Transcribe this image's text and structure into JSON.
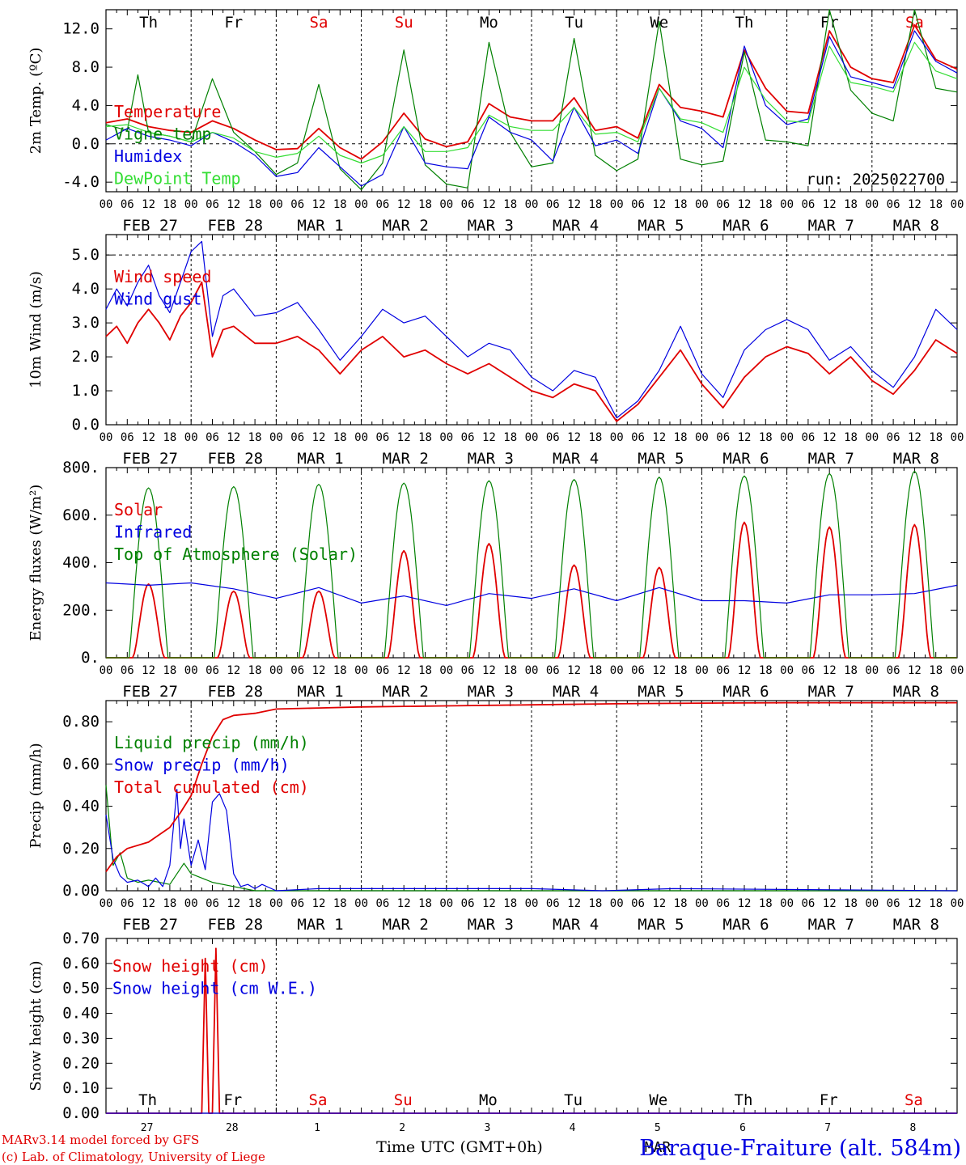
{
  "colors": {
    "red": "#e00000",
    "green": "#008000",
    "blue": "#0000e0",
    "lightgreen": "#33dd33",
    "axis": "#000000"
  },
  "days": [
    {
      "dow": "Th",
      "date": "FEB 27",
      "num": "27",
      "weekend": false
    },
    {
      "dow": "Fr",
      "date": "FEB 28",
      "num": "28",
      "weekend": false
    },
    {
      "dow": "Sa",
      "date": "MAR  1",
      "num": "1",
      "weekend": true
    },
    {
      "dow": "Su",
      "date": "MAR  2",
      "num": "2",
      "weekend": true
    },
    {
      "dow": "Mo",
      "date": "MAR  3",
      "num": "3",
      "weekend": false
    },
    {
      "dow": "Tu",
      "date": "MAR  4",
      "num": "4",
      "weekend": false
    },
    {
      "dow": "We",
      "date": "MAR  5",
      "num": "5",
      "weekend": false
    },
    {
      "dow": "Th",
      "date": "MAR  6",
      "num": "6",
      "weekend": false
    },
    {
      "dow": "Fr",
      "date": "MAR  7",
      "num": "7",
      "weekend": false
    },
    {
      "dow": "Sa",
      "date": "MAR  8",
      "num": "8",
      "weekend": true
    }
  ],
  "hour_ticks": [
    "00",
    "06",
    "12",
    "18"
  ],
  "run_label": "run: 2025022700",
  "footer": {
    "model": "MARv3.14 model forced by GFS",
    "copyright": "(c) Lab. of Climatology, University of Liege",
    "xlabel": "Time UTC (GMT+0h)",
    "month": "MAR",
    "station": "Baraque-Fraiture (alt. 584m)"
  },
  "chart_data": [
    {
      "id": "temperature",
      "type": "line",
      "ylabel": "2m Temp. (ºC)",
      "ylim": [
        -5.0,
        14.0
      ],
      "yticks": [
        -4.0,
        0.0,
        4.0,
        8.0,
        12.0
      ],
      "ytick_labels": [
        "-4.0",
        "0.0",
        "4.0",
        "8.0",
        "12.0"
      ],
      "reference_line": 0.0,
      "x_unit": "hours since FEB 27 00 UTC",
      "series": [
        {
          "name": "Temperature",
          "color": "red",
          "x": [
            0,
            6,
            12,
            18,
            24,
            30,
            36,
            42,
            48,
            54,
            60,
            66,
            72,
            78,
            84,
            90,
            96,
            102,
            108,
            114,
            120,
            126,
            132,
            138,
            144,
            150,
            156,
            162,
            168,
            174,
            180,
            186,
            192,
            198,
            204,
            210,
            216,
            222,
            228,
            234,
            240
          ],
          "values": [
            2.2,
            2.6,
            1.8,
            1.4,
            1.2,
            2.4,
            1.6,
            0.4,
            -0.6,
            -0.5,
            1.6,
            -0.4,
            -1.6,
            0.2,
            3.2,
            0.5,
            -0.3,
            0.2,
            4.2,
            2.8,
            2.4,
            2.4,
            4.8,
            1.4,
            1.8,
            0.6,
            6.2,
            3.8,
            3.4,
            2.8,
            9.8,
            5.8,
            3.4,
            3.2,
            11.8,
            8.0,
            6.8,
            6.4,
            12.4,
            8.8,
            7.8
          ]
        },
        {
          "name": "Vigne temp",
          "color": "green",
          "x": [
            0,
            6,
            9,
            12,
            18,
            24,
            30,
            36,
            42,
            48,
            54,
            60,
            66,
            72,
            78,
            84,
            90,
            96,
            102,
            108,
            114,
            120,
            126,
            132,
            138,
            144,
            150,
            156,
            162,
            168,
            174,
            180,
            186,
            192,
            198,
            204,
            210,
            216,
            222,
            228,
            234,
            240
          ],
          "values": [
            2.0,
            1.4,
            7.2,
            1.2,
            0.8,
            0.2,
            6.8,
            1.2,
            -0.8,
            -3.2,
            -2.0,
            6.2,
            -2.6,
            -4.8,
            -2.0,
            9.8,
            -2.2,
            -4.2,
            -4.6,
            10.6,
            1.2,
            -2.4,
            -2.0,
            11.0,
            -1.2,
            -2.8,
            -1.6,
            12.8,
            -1.6,
            -2.2,
            -1.8,
            9.6,
            0.4,
            0.2,
            -0.2,
            14.0,
            5.6,
            3.2,
            2.4,
            14.0,
            5.8,
            5.4
          ]
        },
        {
          "name": "Humidex",
          "color": "blue",
          "x": [
            0,
            6,
            12,
            18,
            24,
            30,
            36,
            42,
            48,
            54,
            60,
            66,
            72,
            78,
            84,
            90,
            96,
            102,
            108,
            114,
            120,
            126,
            132,
            138,
            144,
            150,
            156,
            162,
            168,
            174,
            180,
            186,
            192,
            198,
            204,
            210,
            216,
            222,
            228,
            234,
            240
          ],
          "values": [
            0.4,
            1.6,
            0.8,
            0.4,
            -0.2,
            1.2,
            0.2,
            -1.2,
            -3.4,
            -3.0,
            -0.4,
            -2.4,
            -4.4,
            -3.2,
            1.8,
            -2.0,
            -2.4,
            -2.6,
            2.8,
            1.2,
            0.4,
            -1.8,
            3.8,
            -0.2,
            0.4,
            -1.0,
            5.8,
            2.4,
            1.6,
            -0.4,
            10.2,
            4.0,
            2.0,
            2.6,
            11.2,
            7.0,
            6.4,
            5.8,
            11.8,
            8.6,
            7.4
          ]
        },
        {
          "name": "DewPoint Temp",
          "color": "lightgreen",
          "x": [
            0,
            6,
            12,
            18,
            24,
            30,
            36,
            42,
            48,
            54,
            60,
            66,
            72,
            78,
            84,
            90,
            96,
            102,
            108,
            114,
            120,
            126,
            132,
            138,
            144,
            150,
            156,
            162,
            168,
            174,
            180,
            186,
            192,
            198,
            204,
            210,
            216,
            222,
            228,
            234,
            240
          ],
          "values": [
            1.8,
            2.0,
            1.2,
            0.8,
            0.2,
            1.2,
            0.6,
            -0.8,
            -1.4,
            -1.0,
            0.8,
            -1.2,
            -2.0,
            -1.2,
            1.8,
            -0.8,
            -0.8,
            -0.4,
            3.0,
            1.8,
            1.4,
            1.4,
            3.8,
            1.0,
            1.2,
            0.2,
            5.8,
            2.6,
            2.2,
            1.2,
            8.0,
            4.6,
            2.4,
            2.2,
            10.2,
            6.4,
            6.0,
            5.4,
            10.6,
            7.6,
            6.8
          ]
        }
      ]
    },
    {
      "id": "wind",
      "type": "line",
      "ylabel": "10m Wind (m/s)",
      "ylim": [
        0.0,
        5.6
      ],
      "yticks": [
        0.0,
        1.0,
        2.0,
        3.0,
        4.0,
        5.0
      ],
      "ytick_labels": [
        "0.0",
        "1.0",
        "2.0",
        "3.0",
        "4.0",
        "5.0"
      ],
      "reference_line": 5.0,
      "series": [
        {
          "name": "Wind speed",
          "color": "red",
          "x": [
            0,
            3,
            6,
            9,
            12,
            15,
            18,
            21,
            24,
            27,
            30,
            33,
            36,
            42,
            48,
            54,
            60,
            66,
            72,
            78,
            84,
            90,
            96,
            102,
            108,
            114,
            120,
            126,
            132,
            138,
            144,
            150,
            156,
            162,
            168,
            174,
            180,
            186,
            192,
            198,
            204,
            210,
            216,
            222,
            228,
            234,
            240
          ],
          "values": [
            2.6,
            2.9,
            2.4,
            3.0,
            3.4,
            3.0,
            2.5,
            3.2,
            3.6,
            4.2,
            2.0,
            2.8,
            2.9,
            2.4,
            2.4,
            2.6,
            2.2,
            1.5,
            2.2,
            2.6,
            2.0,
            2.2,
            1.8,
            1.5,
            1.8,
            1.4,
            1.0,
            0.8,
            1.2,
            1.0,
            0.1,
            0.6,
            1.4,
            2.2,
            1.2,
            0.5,
            1.4,
            2.0,
            2.3,
            2.1,
            1.5,
            2.0,
            1.3,
            0.9,
            1.6,
            2.5,
            2.1
          ]
        },
        {
          "name": "Wind gust",
          "color": "blue",
          "x": [
            0,
            3,
            6,
            9,
            12,
            15,
            18,
            21,
            24,
            27,
            30,
            33,
            36,
            42,
            48,
            54,
            60,
            66,
            72,
            78,
            84,
            90,
            96,
            102,
            108,
            114,
            120,
            126,
            132,
            138,
            144,
            150,
            156,
            162,
            168,
            174,
            180,
            186,
            192,
            198,
            204,
            210,
            216,
            222,
            228,
            234,
            240
          ],
          "values": [
            3.4,
            4.0,
            3.5,
            4.2,
            4.7,
            3.8,
            3.3,
            4.2,
            5.1,
            5.4,
            2.6,
            3.8,
            4.0,
            3.2,
            3.3,
            3.6,
            2.8,
            1.9,
            2.6,
            3.4,
            3.0,
            3.2,
            2.6,
            2.0,
            2.4,
            2.2,
            1.4,
            1.0,
            1.6,
            1.4,
            0.2,
            0.7,
            1.6,
            2.9,
            1.5,
            0.8,
            2.2,
            2.8,
            3.1,
            2.8,
            1.9,
            2.3,
            1.6,
            1.1,
            2.0,
            3.4,
            2.8
          ]
        }
      ]
    },
    {
      "id": "energy",
      "type": "line",
      "ylabel": "Energy fluxes (W/m²)",
      "ylim": [
        0,
        800
      ],
      "yticks": [
        0,
        200,
        400,
        600,
        800
      ],
      "ytick_labels": [
        "0.",
        "200.",
        "400.",
        "600.",
        "800."
      ],
      "series": [
        {
          "name": "Solar",
          "color": "red",
          "peaks": [
            310,
            280,
            280,
            450,
            480,
            390,
            380,
            570,
            550,
            560
          ]
        },
        {
          "name": "Infrared",
          "color": "blue",
          "x": [
            0,
            12,
            24,
            36,
            48,
            60,
            72,
            84,
            96,
            108,
            120,
            132,
            144,
            156,
            168,
            180,
            192,
            204,
            216,
            228,
            240
          ],
          "values": [
            315,
            305,
            315,
            290,
            250,
            295,
            230,
            260,
            220,
            270,
            250,
            290,
            240,
            295,
            240,
            240,
            230,
            265,
            265,
            270,
            305
          ]
        },
        {
          "name": "Top of Atmosphere (Solar)",
          "color": "green",
          "peaks": [
            715,
            720,
            730,
            735,
            745,
            750,
            760,
            765,
            775,
            785
          ]
        }
      ]
    },
    {
      "id": "precip",
      "type": "line",
      "ylabel": "Precip (mm/h)",
      "ylim": [
        0.0,
        0.9
      ],
      "yticks": [
        0.0,
        0.2,
        0.4,
        0.6,
        0.8
      ],
      "ytick_labels": [
        "0.00",
        "0.20",
        "0.40",
        "0.60",
        "0.80"
      ],
      "series": [
        {
          "name": "Liquid precip (mm/h)",
          "color": "green",
          "x": [
            0,
            2,
            4,
            6,
            9,
            12,
            18,
            22,
            24,
            27,
            30,
            36,
            42,
            48,
            240
          ],
          "values": [
            0.5,
            0.12,
            0.18,
            0.06,
            0.04,
            0.05,
            0.03,
            0.13,
            0.08,
            0.06,
            0.04,
            0.02,
            0.0,
            0.0,
            0.0
          ]
        },
        {
          "name": "Snow precip (mm/h)",
          "color": "blue",
          "x": [
            0,
            2,
            4,
            6,
            9,
            12,
            14,
            16,
            18,
            20,
            21,
            22,
            24,
            26,
            28,
            30,
            32,
            34,
            36,
            38,
            40,
            42,
            44,
            48,
            60,
            120,
            140,
            160,
            240
          ],
          "values": [
            0.36,
            0.15,
            0.07,
            0.04,
            0.05,
            0.02,
            0.06,
            0.02,
            0.12,
            0.48,
            0.2,
            0.34,
            0.12,
            0.24,
            0.1,
            0.42,
            0.46,
            0.38,
            0.08,
            0.02,
            0.03,
            0.01,
            0.03,
            0.0,
            0.01,
            0.01,
            0.0,
            0.01,
            0.0
          ]
        },
        {
          "name": "Total cumulated (cm)",
          "color": "red",
          "x": [
            0,
            3,
            6,
            12,
            18,
            21,
            24,
            27,
            30,
            33,
            36,
            42,
            48,
            60,
            72,
            96,
            120,
            144,
            168,
            192,
            240
          ],
          "values": [
            0.09,
            0.16,
            0.2,
            0.23,
            0.3,
            0.37,
            0.45,
            0.6,
            0.73,
            0.81,
            0.83,
            0.84,
            0.86,
            0.865,
            0.87,
            0.875,
            0.88,
            0.885,
            0.888,
            0.89,
            0.89
          ]
        }
      ]
    },
    {
      "id": "snow",
      "type": "line",
      "ylabel": "Snow height (cm)",
      "ylim": [
        0.0,
        0.7
      ],
      "yticks": [
        0.0,
        0.1,
        0.2,
        0.3,
        0.4,
        0.5,
        0.6,
        0.7
      ],
      "ytick_labels": [
        "0.00",
        "0.10",
        "0.20",
        "0.30",
        "0.40",
        "0.50",
        "0.60",
        "0.70"
      ],
      "series": [
        {
          "name": "Snow height (cm)",
          "color": "red",
          "x": [
            0,
            27,
            28,
            29,
            30,
            31,
            32,
            33,
            240
          ],
          "values": [
            0,
            0,
            0.62,
            0.0,
            0.0,
            0.66,
            0.0,
            0,
            0
          ]
        },
        {
          "name": "Snow height (cm W.E.)",
          "color": "blue",
          "x": [
            0,
            240
          ],
          "values": [
            0,
            0
          ]
        }
      ]
    }
  ]
}
